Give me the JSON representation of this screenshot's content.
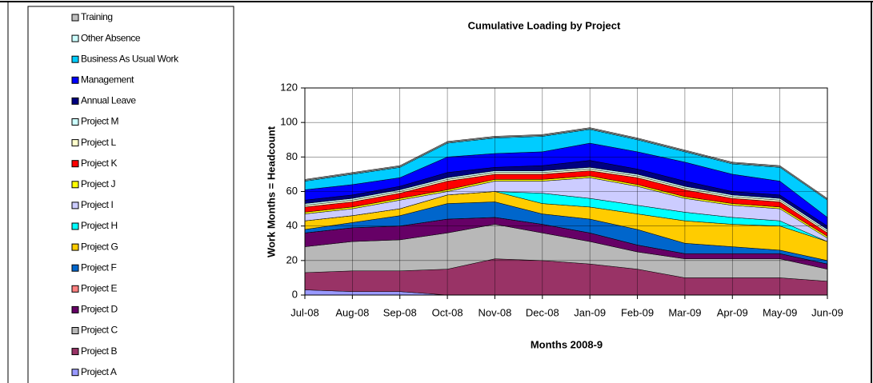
{
  "chart_data": {
    "type": "stacked_area",
    "title": "Cumulative Loading by Project",
    "x_label": "Months 2008-9",
    "y_label": "Work Months = Headcount",
    "categories": [
      "Jul-08",
      "Aug-08",
      "Sep-08",
      "Oct-08",
      "Nov-08",
      "Dec-08",
      "Jan-09",
      "Feb-09",
      "Mar-09",
      "Apr-09",
      "May-09",
      "Jun-09"
    ],
    "ylim": [
      0,
      120
    ],
    "yticks": [
      0,
      20,
      40,
      60,
      80,
      100,
      120
    ],
    "grid": true,
    "legend": "left",
    "series": [
      {
        "name": "Project A",
        "color": "#9999ff",
        "values": [
          3,
          2,
          2,
          0,
          0,
          0,
          0,
          0,
          0,
          0,
          0,
          0
        ]
      },
      {
        "name": "Project B",
        "color": "#993366",
        "values": [
          10,
          12,
          12,
          15,
          21,
          20,
          18,
          15,
          10,
          10,
          10,
          8
        ]
      },
      {
        "name": "Project C",
        "color": "#b8b8b8",
        "values": [
          15,
          17,
          18,
          21,
          20,
          16,
          13,
          10,
          11,
          11,
          11,
          7
        ]
      },
      {
        "name": "Project D",
        "color": "#660066",
        "values": [
          8,
          8,
          8,
          8,
          4,
          5,
          5,
          4,
          3,
          3,
          3,
          3
        ]
      },
      {
        "name": "Project E",
        "color": "#ff8080",
        "values": [
          0,
          0,
          0,
          0,
          0,
          0,
          0,
          0,
          0,
          0,
          0,
          0
        ]
      },
      {
        "name": "Project F",
        "color": "#0066cc",
        "values": [
          2,
          3,
          6,
          9,
          9,
          6,
          8,
          9,
          6,
          4,
          2,
          2
        ]
      },
      {
        "name": "Project G",
        "color": "#ffcc00",
        "values": [
          5,
          4,
          4,
          5,
          6,
          6,
          7,
          9,
          13,
          13,
          14,
          11
        ]
      },
      {
        "name": "Project H",
        "color": "#00ffff",
        "values": [
          0,
          0,
          0,
          0,
          0,
          6,
          5,
          5,
          5,
          4,
          3,
          0
        ]
      },
      {
        "name": "Project I",
        "color": "#ccccff",
        "values": [
          4,
          4,
          5,
          2,
          6,
          7,
          12,
          11,
          8,
          7,
          7,
          2
        ]
      },
      {
        "name": "Project J",
        "color": "#ffff00",
        "values": [
          1,
          1,
          1,
          1,
          1,
          1,
          1,
          1,
          1,
          1,
          1,
          1
        ]
      },
      {
        "name": "Project K",
        "color": "#ff0000",
        "values": [
          3,
          3,
          3,
          5,
          3,
          3,
          3,
          4,
          4,
          3,
          3,
          2
        ]
      },
      {
        "name": "Project L",
        "color": "#ffffcc",
        "values": [
          1,
          1,
          1,
          1,
          1,
          1,
          1,
          1,
          1,
          1,
          1,
          1
        ]
      },
      {
        "name": "Project M",
        "color": "#ccffff",
        "values": [
          1,
          1,
          1,
          1,
          1,
          1,
          1,
          1,
          1,
          1,
          1,
          1
        ]
      },
      {
        "name": "Annual Leave",
        "color": "#000080",
        "values": [
          2,
          2,
          2,
          3,
          2,
          3,
          4,
          3,
          3,
          2,
          2,
          2
        ]
      },
      {
        "name": "Management",
        "color": "#0000ff",
        "values": [
          6,
          6,
          5,
          9,
          8,
          8,
          10,
          10,
          11,
          10,
          8,
          5
        ]
      },
      {
        "name": "Business As Usual Work",
        "color": "#00ccff",
        "values": [
          5,
          6,
          6,
          8,
          9,
          9,
          8,
          7,
          6,
          6,
          8,
          10
        ]
      },
      {
        "name": "Other Absence",
        "color": "#ccffff",
        "values": [
          0.5,
          0.5,
          0.5,
          0.5,
          0.5,
          0.5,
          0.5,
          0.5,
          0.5,
          0.5,
          0.5,
          0.5
        ]
      },
      {
        "name": "Training",
        "color": "#c0c0c0",
        "values": [
          0.5,
          0.5,
          0.5,
          0.5,
          0.5,
          0.5,
          0.5,
          0.5,
          0.5,
          0.5,
          0.5,
          0.5
        ]
      }
    ]
  }
}
